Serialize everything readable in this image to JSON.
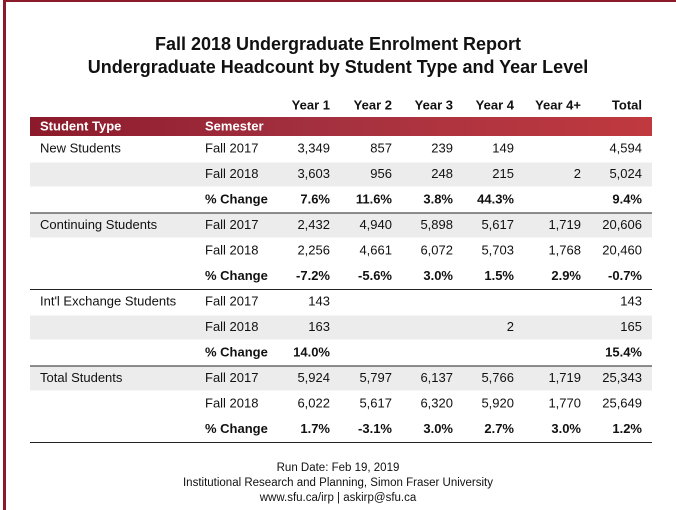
{
  "header": {
    "title": "Fall 2018 Undergraduate Enrolment Report",
    "subtitle": "Undergraduate Headcount by Student Type and Year Level"
  },
  "table": {
    "label_headers": [
      "Student Type",
      "Semester"
    ],
    "value_headers": [
      "Year 1",
      "Year 2",
      "Year 3",
      "Year 4",
      "Year 4+",
      "Total"
    ],
    "groups": [
      {
        "name": "New Students",
        "rows": [
          {
            "semester": "Fall 2017",
            "values": [
              "3,349",
              "857",
              "239",
              "149",
              null,
              "4,594"
            ]
          },
          {
            "semester": "Fall 2018",
            "values": [
              "3,603",
              "956",
              "248",
              "215",
              "2",
              "5,024"
            ]
          },
          {
            "semester": "% Change",
            "values": [
              "7.6%",
              "11.6%",
              "3.8%",
              "44.3%",
              null,
              "9.4%"
            ]
          }
        ]
      },
      {
        "name": "Continuing Students",
        "rows": [
          {
            "semester": "Fall 2017",
            "values": [
              "2,432",
              "4,940",
              "5,898",
              "5,617",
              "1,719",
              "20,606"
            ]
          },
          {
            "semester": "Fall 2018",
            "values": [
              "2,256",
              "4,661",
              "6,072",
              "5,703",
              "1,768",
              "20,460"
            ]
          },
          {
            "semester": "% Change",
            "values": [
              "-7.2%",
              "-5.6%",
              "3.0%",
              "1.5%",
              "2.9%",
              "-0.7%"
            ]
          }
        ]
      },
      {
        "name": "Int'l Exchange Students",
        "rows": [
          {
            "semester": "Fall 2017",
            "values": [
              "143",
              null,
              null,
              null,
              null,
              "143"
            ]
          },
          {
            "semester": "Fall 2018",
            "values": [
              "163",
              null,
              null,
              "2",
              null,
              "165"
            ]
          },
          {
            "semester": "% Change",
            "values": [
              "14.0%",
              null,
              null,
              null,
              null,
              "15.4%"
            ]
          }
        ]
      },
      {
        "name": "Total Students",
        "rows": [
          {
            "semester": "Fall 2017",
            "values": [
              "5,924",
              "5,797",
              "6,137",
              "5,766",
              "1,719",
              "25,343"
            ]
          },
          {
            "semester": "Fall 2018",
            "values": [
              "6,022",
              "5,617",
              "6,320",
              "5,920",
              "1,770",
              "25,649"
            ]
          },
          {
            "semester": "% Change",
            "values": [
              "1.7%",
              "-3.1%",
              "3.0%",
              "2.7%",
              "3.0%",
              "1.2%"
            ]
          }
        ]
      }
    ]
  },
  "footer": {
    "lines": [
      "Run Date: Feb 19, 2019",
      "Institutional Research and Planning, Simon Fraser University",
      "www.sfu.ca/irp | askirp@sfu.ca"
    ]
  }
}
